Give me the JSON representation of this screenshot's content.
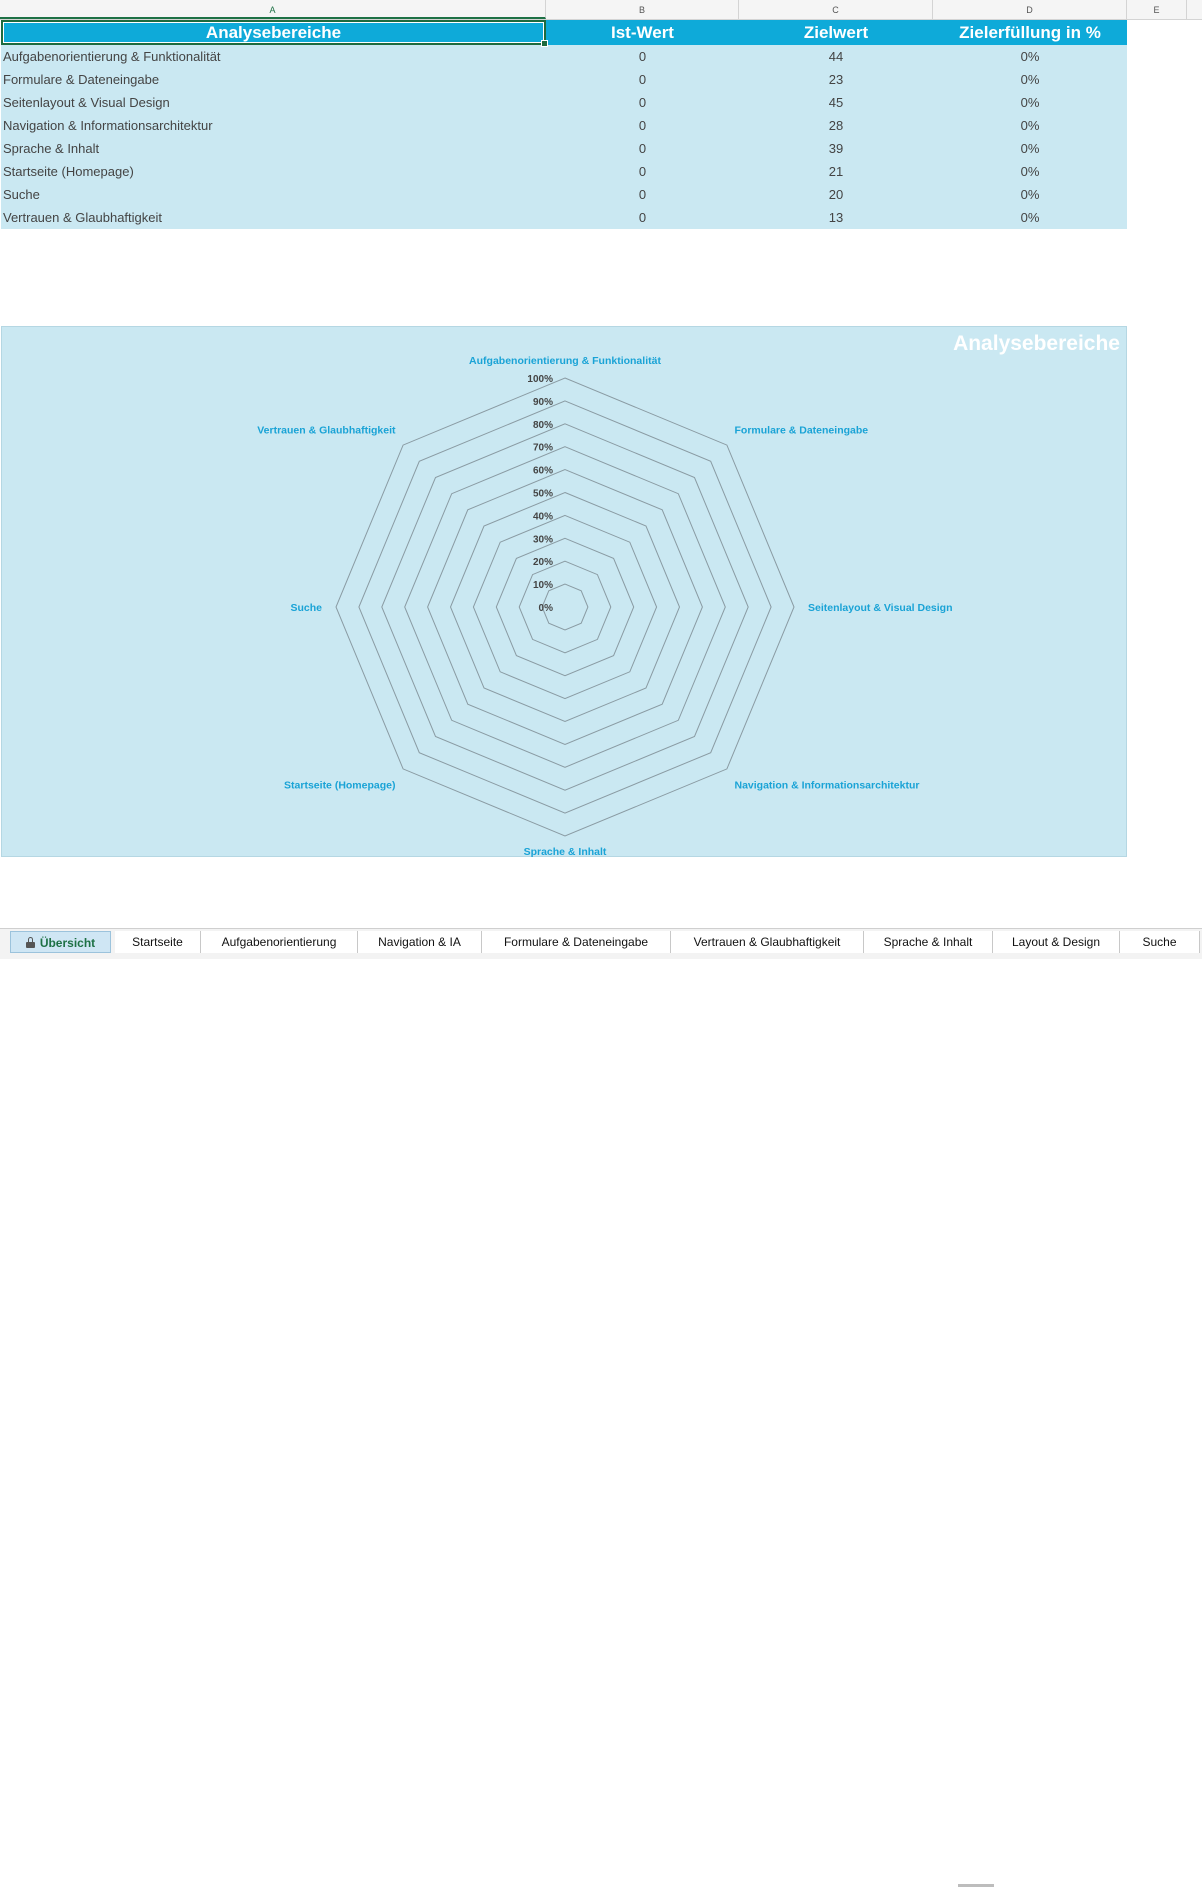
{
  "columns": [
    "A",
    "B",
    "C",
    "D",
    "E"
  ],
  "table": {
    "headers": [
      "Analysebereiche",
      "Ist-Wert",
      "Zielwert",
      "Zielerfüllung in %"
    ],
    "rows": [
      {
        "area": "Aufgabenorientierung & Funktionalität",
        "ist": "0",
        "ziel": "44",
        "pct": "0%"
      },
      {
        "area": "Formulare & Dateneingabe",
        "ist": "0",
        "ziel": "23",
        "pct": "0%"
      },
      {
        "area": "Seitenlayout & Visual Design",
        "ist": "0",
        "ziel": "45",
        "pct": "0%"
      },
      {
        "area": "Navigation & Informationsarchitektur",
        "ist": "0",
        "ziel": "28",
        "pct": "0%"
      },
      {
        "area": "Sprache & Inhalt",
        "ist": "0",
        "ziel": "39",
        "pct": "0%"
      },
      {
        "area": "Startseite (Homepage)",
        "ist": "0",
        "ziel": "21",
        "pct": "0%"
      },
      {
        "area": "Suche",
        "ist": "0",
        "ziel": "20",
        "pct": "0%"
      },
      {
        "area": "Vertrauen & Glaubhaftigkeit",
        "ist": "0",
        "ziel": "13",
        "pct": "0%"
      }
    ]
  },
  "chart_data": {
    "type": "radar",
    "title": "Analysebereiche",
    "categories": [
      "Aufgabenorientierung & Funktionalität",
      "Formulare & Dateneingabe",
      "Seitenlayout & Visual Design",
      "Navigation & Informationsarchitektur",
      "Sprache & Inhalt",
      "Startseite (Homepage)",
      "Suche",
      "Vertrauen & Glaubhaftigkeit"
    ],
    "series": [
      {
        "values": [
          0,
          0,
          0,
          0,
          0,
          0,
          0,
          0
        ]
      }
    ],
    "ticks": [
      "0%",
      "10%",
      "20%",
      "30%",
      "40%",
      "50%",
      "60%",
      "70%",
      "80%",
      "90%",
      "100%"
    ],
    "rlim": [
      0,
      1
    ],
    "colors": {
      "label": "#1aa3d6",
      "grid": "#8a9ba3",
      "tick": "#444444",
      "background": "#cae8f2"
    }
  },
  "sheet_tabs": [
    {
      "label": "Übersicht",
      "active": true
    },
    {
      "label": "Startseite"
    },
    {
      "label": "Aufgabenorientierung"
    },
    {
      "label": "Navigation & IA"
    },
    {
      "label": "Formulare & Dateneingabe"
    },
    {
      "label": "Vertrauen & Glaubhaftigkeit"
    },
    {
      "label": "Sprache & Inhalt"
    },
    {
      "label": "Layout & Design"
    },
    {
      "label": "Suche"
    }
  ],
  "colors": {
    "header_bg": "#0eaad9",
    "row_bg": "#cae8f2",
    "selection": "#1d6b3f"
  }
}
